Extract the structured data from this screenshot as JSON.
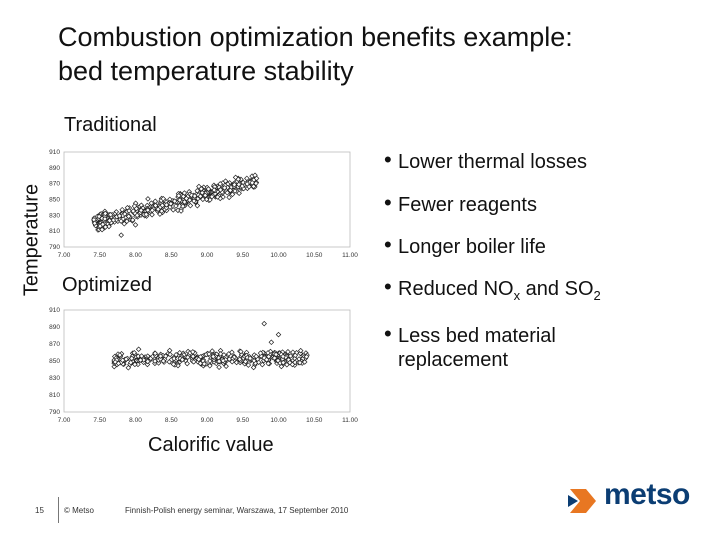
{
  "title": {
    "line1": "Combustion optimization benefits example:",
    "line2": "bed temperature stability"
  },
  "labels": {
    "traditional": "Traditional",
    "optimized": "Optimized",
    "ylabel": "Temperature",
    "xlabel": "Calorific value"
  },
  "bullets": [
    {
      "text": "Lower thermal losses"
    },
    {
      "text": "Fewer reagents"
    },
    {
      "text": "Longer boiler life"
    },
    {
      "text": "Reduced NO",
      "sub1": "x",
      "mid": " and SO",
      "sub2": "2"
    },
    {
      "text": "Less bed material",
      "text2": "replacement"
    }
  ],
  "footer": {
    "page": "15",
    "copyright": "© Metso",
    "event": "Finnish-Polish energy seminar, Warszawa, 17 September 2010"
  },
  "logo": {
    "text": "metso",
    "colors": {
      "brand_blue": "#0b3d73",
      "brand_orange": "#e87722"
    }
  },
  "chart_data": [
    {
      "type": "scatter",
      "title": "Traditional",
      "xlim": [
        7.0,
        11.0
      ],
      "ylim": [
        790,
        910
      ],
      "x_ticks": [
        "7.00",
        "7.50",
        "8.00",
        "8.50",
        "9.00",
        "9.50",
        "10.00",
        "10.50",
        "11.00"
      ],
      "y_ticks": [
        "910",
        "890",
        "870",
        "850",
        "830",
        "810",
        "790"
      ],
      "cluster": {
        "x_range": [
          7.4,
          9.7
        ],
        "y_range": [
          808,
          885
        ],
        "trend": "increasing"
      },
      "outliers": [
        [
          8.0,
          818
        ],
        [
          9.1,
          862
        ],
        [
          7.8,
          805
        ],
        [
          9.4,
          878
        ]
      ]
    },
    {
      "type": "scatter",
      "title": "Optimized",
      "xlim": [
        7.0,
        11.0
      ],
      "ylim": [
        790,
        910
      ],
      "x_ticks": [
        "7.00",
        "7.50",
        "8.00",
        "8.50",
        "9.00",
        "9.50",
        "10.00",
        "10.50",
        "11.00"
      ],
      "y_ticks": [
        "910",
        "890",
        "870",
        "850",
        "830",
        "810",
        "790"
      ],
      "cluster": {
        "x_range": [
          7.7,
          10.4
        ],
        "y_range": [
          840,
          866
        ],
        "trend": "flat"
      },
      "outliers": [
        [
          9.8,
          894
        ],
        [
          10.0,
          881
        ],
        [
          9.9,
          872
        ],
        [
          10.3,
          848
        ],
        [
          7.9,
          842
        ]
      ]
    }
  ]
}
